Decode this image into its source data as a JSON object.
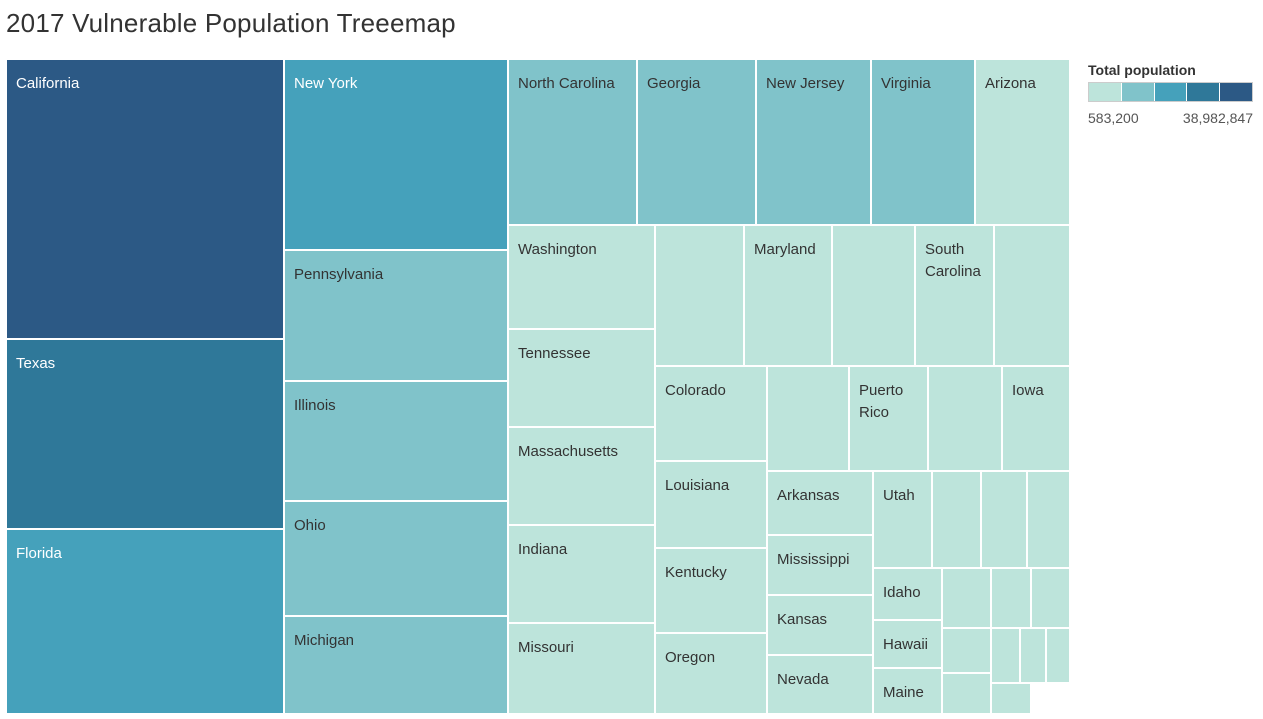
{
  "title": "2017 Vulnerable Population Treeemap",
  "legend": {
    "title": "Total population",
    "min_label": "583,200",
    "max_label": "38,982,847",
    "colors": [
      "#bde4db",
      "#80c3ca",
      "#45a1bb",
      "#2f7899",
      "#2c5985"
    ]
  },
  "chart_data": {
    "type": "treemap",
    "title": "2017 Vulnerable Population Treeemap",
    "color_legend": "Total population",
    "color_range": [
      583200,
      38982847
    ],
    "tiles": [
      {
        "name": "California",
        "level": 4
      },
      {
        "name": "Texas",
        "level": 3
      },
      {
        "name": "Florida",
        "level": 2
      },
      {
        "name": "New York",
        "level": 2
      },
      {
        "name": "Pennsylvania",
        "level": 1
      },
      {
        "name": "Illinois",
        "level": 1
      },
      {
        "name": "Ohio",
        "level": 1
      },
      {
        "name": "Michigan",
        "level": 1
      },
      {
        "name": "North Carolina",
        "level": 1
      },
      {
        "name": "Georgia",
        "level": 1
      },
      {
        "name": "New Jersey",
        "level": 1
      },
      {
        "name": "Virginia",
        "level": 1
      },
      {
        "name": "Arizona",
        "level": 0
      },
      {
        "name": "Washington",
        "level": 0
      },
      {
        "name": "Tennessee",
        "level": 0
      },
      {
        "name": "Massachusetts",
        "level": 0
      },
      {
        "name": "Indiana",
        "level": 0
      },
      {
        "name": "Missouri",
        "level": 0
      },
      {
        "name": "",
        "level": 0
      },
      {
        "name": "Maryland",
        "level": 0
      },
      {
        "name": "",
        "level": 0
      },
      {
        "name": "South\nCarolina",
        "level": 0
      },
      {
        "name": "",
        "level": 0
      },
      {
        "name": "Colorado",
        "level": 0
      },
      {
        "name": "",
        "level": 0
      },
      {
        "name": "Puerto\nRico",
        "level": 0
      },
      {
        "name": "",
        "level": 0
      },
      {
        "name": "Iowa",
        "level": 0
      },
      {
        "name": "Louisiana",
        "level": 0
      },
      {
        "name": "Kentucky",
        "level": 0
      },
      {
        "name": "Oregon",
        "level": 0
      },
      {
        "name": "Arkansas",
        "level": 0
      },
      {
        "name": "Mississippi",
        "level": 0
      },
      {
        "name": "Kansas",
        "level": 0
      },
      {
        "name": "Nevada",
        "level": 0
      },
      {
        "name": "Utah",
        "level": 0
      },
      {
        "name": "",
        "level": 0
      },
      {
        "name": "",
        "level": 0
      },
      {
        "name": "",
        "level": 0
      },
      {
        "name": "Idaho",
        "level": 0
      },
      {
        "name": "Hawaii",
        "level": 0
      },
      {
        "name": "Maine",
        "level": 0
      },
      {
        "name": "",
        "level": 0
      },
      {
        "name": "",
        "level": 0
      },
      {
        "name": "",
        "level": 0
      },
      {
        "name": "",
        "level": 0
      },
      {
        "name": "",
        "level": 0
      },
      {
        "name": "",
        "level": 0
      },
      {
        "name": "",
        "level": 0
      },
      {
        "name": "",
        "level": 0
      },
      {
        "name": "",
        "level": 0
      }
    ]
  }
}
